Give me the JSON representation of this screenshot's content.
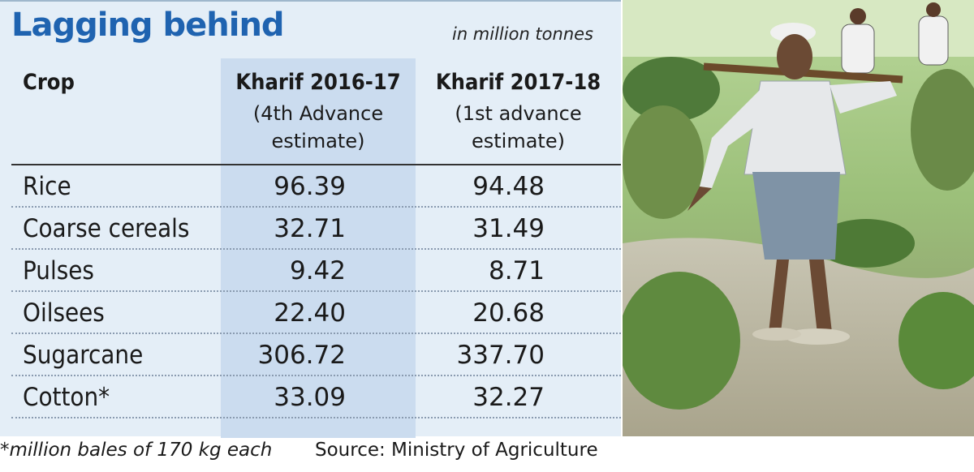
{
  "title": "Lagging behind",
  "unit_note": "in million tonnes",
  "chart_data": {
    "type": "table",
    "columns": [
      {
        "name": "Crop",
        "subtitle": ""
      },
      {
        "name": "Kharif 2016-17",
        "subtitle_lines": [
          "(4th Advance",
          "estimate)"
        ]
      },
      {
        "name": "Kharif 2017-18",
        "subtitle_lines": [
          "(1st advance",
          "estimate)"
        ]
      }
    ],
    "rows": [
      {
        "crop": "Rice",
        "v2016": "96.39",
        "v2017": "94.48"
      },
      {
        "crop": "Coarse cereals",
        "v2016": "32.71",
        "v2017": "31.49"
      },
      {
        "crop": "Pulses",
        "v2016": "9.42",
        "v2017": "8.71"
      },
      {
        "crop": "Oilsees",
        "v2016": "22.40",
        "v2017": "20.68"
      },
      {
        "crop": "Sugarcane",
        "v2016": "306.72",
        "v2017": "337.70"
      },
      {
        "crop": "Cotton*",
        "v2016": "33.09",
        "v2017": "32.27"
      }
    ]
  },
  "footnote": "*million bales of 170 kg each",
  "source": "Source: Ministry of Agriculture",
  "colors": {
    "title": "#1f63b0",
    "panel": "#e4eef7",
    "column_highlight": "#cbdcef"
  },
  "photo": "farmer-carrying-paddy-seedlings"
}
